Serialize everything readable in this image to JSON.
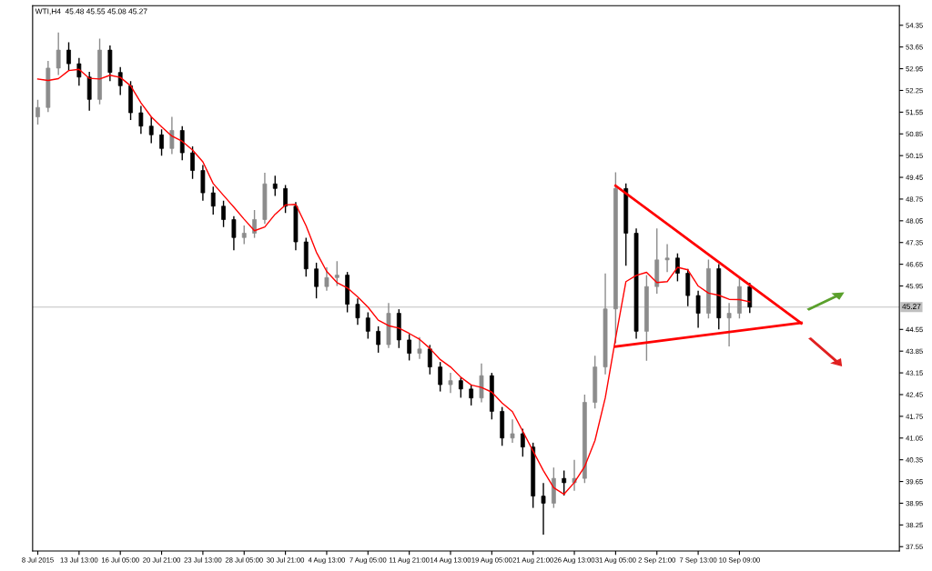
{
  "chart_data": {
    "type": "candlestick",
    "title": "WTI,H4  45.48 45.55 45.08 45.27",
    "categories": [
      "8 Jul 2015",
      null,
      null,
      null,
      "13 Jul 13:00",
      null,
      null,
      null,
      "16 Jul 05:00",
      null,
      null,
      null,
      "20 Jul 21:00",
      null,
      null,
      null,
      "23 Jul 13:00",
      null,
      null,
      null,
      "28 Jul 05:00",
      null,
      null,
      null,
      "30 Jul 21:00",
      null,
      null,
      null,
      "4 Aug 13:00",
      null,
      null,
      null,
      "7 Aug 05:00",
      null,
      null,
      null,
      "11 Aug 21:00",
      null,
      null,
      null,
      "14 Aug 13:00",
      null,
      null,
      null,
      "19 Aug 05:00",
      null,
      null,
      null,
      "21 Aug 21:00",
      null,
      null,
      null,
      "26 Aug 13:00",
      null,
      null,
      null,
      "31 Aug 05:00",
      null,
      null,
      null,
      "2 Sep 21:00",
      null,
      null,
      null,
      "7 Sep 13:00",
      null,
      null,
      null,
      "10 Sep 09:00",
      null,
      null,
      null,
      null,
      null,
      null,
      null,
      null,
      null,
      null,
      null,
      null,
      null,
      null,
      null
    ],
    "ohlc": [
      [
        51.4,
        51.95,
        51.15,
        51.7
      ],
      [
        51.7,
        53.2,
        51.55,
        52.97
      ],
      [
        52.97,
        54.12,
        52.75,
        53.55
      ],
      [
        53.55,
        53.8,
        52.9,
        53.11
      ],
      [
        53.11,
        53.3,
        52.4,
        52.68
      ],
      [
        52.68,
        52.85,
        51.6,
        51.96
      ],
      [
        51.96,
        53.92,
        51.8,
        53.55
      ],
      [
        53.55,
        53.7,
        52.55,
        52.83
      ],
      [
        52.83,
        53.0,
        52.1,
        52.4
      ],
      [
        52.4,
        52.55,
        51.3,
        51.53
      ],
      [
        51.53,
        51.75,
        50.85,
        51.1
      ],
      [
        51.1,
        51.4,
        50.55,
        50.82
      ],
      [
        50.82,
        51.0,
        50.15,
        50.38
      ],
      [
        50.38,
        51.4,
        50.2,
        50.96
      ],
      [
        50.96,
        51.1,
        50.0,
        50.24
      ],
      [
        50.24,
        50.45,
        49.4,
        49.67
      ],
      [
        49.67,
        49.85,
        48.7,
        48.95
      ],
      [
        48.95,
        49.15,
        48.25,
        48.52
      ],
      [
        48.52,
        48.7,
        47.85,
        48.09
      ],
      [
        48.09,
        48.2,
        47.1,
        47.51
      ],
      [
        47.51,
        47.9,
        47.3,
        47.65
      ],
      [
        47.65,
        48.4,
        47.5,
        48.09
      ],
      [
        48.09,
        49.6,
        47.95,
        49.24
      ],
      [
        49.24,
        49.5,
        48.85,
        49.09
      ],
      [
        49.09,
        49.2,
        48.3,
        48.52
      ],
      [
        48.52,
        48.65,
        47.1,
        47.37
      ],
      [
        47.37,
        47.5,
        46.25,
        46.5
      ],
      [
        46.5,
        46.7,
        45.55,
        45.93
      ],
      [
        45.93,
        46.55,
        45.8,
        46.22
      ],
      [
        46.22,
        46.75,
        45.95,
        46.3
      ],
      [
        46.3,
        46.4,
        45.1,
        45.36
      ],
      [
        45.36,
        45.55,
        44.7,
        44.92
      ],
      [
        44.92,
        45.1,
        44.25,
        44.49
      ],
      [
        44.49,
        44.65,
        43.8,
        44.06
      ],
      [
        44.06,
        45.4,
        43.95,
        45.07
      ],
      [
        45.07,
        45.2,
        43.95,
        44.21
      ],
      [
        44.21,
        44.4,
        43.55,
        43.78
      ],
      [
        43.78,
        44.3,
        43.6,
        43.92
      ],
      [
        43.92,
        44.05,
        43.1,
        43.34
      ],
      [
        43.34,
        43.5,
        42.55,
        42.77
      ],
      [
        42.77,
        43.15,
        42.5,
        42.9
      ],
      [
        42.9,
        43.0,
        42.35,
        42.63
      ],
      [
        42.63,
        42.75,
        42.1,
        42.34
      ],
      [
        42.34,
        43.45,
        42.2,
        43.06
      ],
      [
        43.06,
        43.15,
        41.65,
        41.91
      ],
      [
        41.91,
        42.05,
        40.8,
        41.05
      ],
      [
        41.05,
        41.65,
        40.9,
        41.19
      ],
      [
        41.19,
        41.35,
        40.45,
        40.76
      ],
      [
        40.76,
        40.9,
        38.8,
        39.18
      ],
      [
        39.18,
        39.6,
        37.94,
        38.95
      ],
      [
        38.95,
        40.1,
        38.8,
        39.75
      ],
      [
        39.75,
        40.0,
        39.2,
        39.61
      ],
      [
        39.61,
        40.35,
        39.35,
        39.75
      ],
      [
        39.75,
        42.45,
        39.6,
        42.2
      ],
      [
        42.2,
        43.7,
        42.0,
        43.34
      ],
      [
        43.34,
        46.35,
        43.1,
        45.21
      ],
      [
        45.21,
        49.61,
        44.1,
        49.09
      ],
      [
        49.09,
        49.25,
        46.6,
        47.65
      ],
      [
        47.65,
        47.8,
        44.25,
        44.49
      ],
      [
        44.49,
        46.3,
        43.54,
        45.93
      ],
      [
        45.93,
        47.8,
        45.7,
        46.79
      ],
      [
        46.79,
        47.3,
        46.4,
        46.85
      ],
      [
        46.85,
        47.0,
        46.1,
        46.36
      ],
      [
        46.36,
        46.5,
        45.3,
        45.64
      ],
      [
        45.64,
        45.8,
        44.6,
        45.07
      ],
      [
        45.07,
        46.8,
        44.9,
        46.51
      ],
      [
        46.51,
        46.65,
        44.55,
        44.92
      ],
      [
        44.92,
        45.4,
        44.0,
        45.07
      ],
      [
        45.07,
        46.25,
        44.9,
        45.93
      ],
      [
        45.93,
        46.05,
        45.08,
        45.27
      ],
      null,
      null,
      null,
      null,
      null,
      null,
      null,
      null,
      null,
      null,
      null,
      null,
      null,
      null
    ],
    "colors": [
      "#8c8c8c",
      "#8c8c8c",
      "#8c8c8c",
      "#000000",
      "#000000",
      "#000000",
      "#8c8c8c",
      "#000000",
      "#000000",
      "#000000",
      "#000000",
      "#000000",
      "#000000",
      "#8c8c8c",
      "#000000",
      "#000000",
      "#000000",
      "#000000",
      "#000000",
      "#000000",
      "#8c8c8c",
      "#8c8c8c",
      "#8c8c8c",
      "#000000",
      "#000000",
      "#000000",
      "#000000",
      "#000000",
      "#8c8c8c",
      "#8c8c8c",
      "#000000",
      "#000000",
      "#000000",
      "#000000",
      "#8c8c8c",
      "#000000",
      "#000000",
      "#8c8c8c",
      "#000000",
      "#000000",
      "#8c8c8c",
      "#000000",
      "#000000",
      "#8c8c8c",
      "#000000",
      "#000000",
      "#8c8c8c",
      "#000000",
      "#000000",
      "#000000",
      "#8c8c8c",
      "#000000",
      "#8c8c8c",
      "#8c8c8c",
      "#8c8c8c",
      "#8c8c8c",
      "#8c8c8c",
      "#000000",
      "#000000",
      "#8c8c8c",
      "#8c8c8c",
      "#8c8c8c",
      "#000000",
      "#000000",
      "#000000",
      "#8c8c8c",
      "#000000",
      "#8c8c8c",
      "#8c8c8c",
      "#000000",
      null,
      null,
      null,
      null,
      null,
      null,
      null,
      null,
      null,
      null,
      null,
      null,
      null,
      null
    ],
    "series": [
      {
        "type": "line",
        "color": "#ff0000",
        "values": [
          52.62,
          52.57,
          52.63,
          52.89,
          52.93,
          52.64,
          52.62,
          52.74,
          52.67,
          52.4,
          51.85,
          51.4,
          51.08,
          50.78,
          50.61,
          50.33,
          49.95,
          49.25,
          48.87,
          48.49,
          48.1,
          47.73,
          47.85,
          48.26,
          48.56,
          48.58,
          47.89,
          47.04,
          46.42,
          46.06,
          45.89,
          45.6,
          45.27,
          44.85,
          44.67,
          44.59,
          44.42,
          44.23,
          43.94,
          43.58,
          43.34,
          43.01,
          42.76,
          42.68,
          42.53,
          42.18,
          41.9,
          41.27,
          40.63,
          40.0,
          39.45,
          39.24,
          39.62,
          40.13,
          40.97,
          42.35,
          44.27,
          46.09,
          46.29,
          46.39,
          46.06,
          46.09,
          46.55,
          46.47,
          45.95,
          45.72,
          45.65,
          45.52,
          45.51,
          45.44,
          null,
          null,
          null,
          null,
          null,
          null,
          null,
          null,
          null,
          null,
          null,
          null,
          null,
          null
        ]
      },
      {
        "type": "line",
        "color": "#ff0000",
        "values": [
          null,
          null,
          null,
          null,
          null,
          null,
          null,
          null,
          null,
          null,
          null,
          null,
          null,
          null,
          null,
          null,
          null,
          null,
          null,
          null,
          null,
          null,
          null,
          null,
          null,
          null,
          null,
          null,
          null,
          null,
          null,
          null,
          null,
          null,
          null,
          null,
          null,
          null,
          null,
          null,
          null,
          null,
          null,
          null,
          null,
          null,
          null,
          null,
          null,
          null,
          null,
          null,
          null,
          null,
          null,
          null,
          49.18,
          null,
          null,
          null,
          null,
          null,
          null,
          null,
          null,
          null,
          null,
          null,
          null,
          null,
          null,
          null,
          null,
          null,
          44.75,
          null,
          null,
          null,
          null,
          null,
          null,
          null,
          null,
          null
        ]
      },
      {
        "type": "line",
        "color": "#ff0000",
        "values": [
          null,
          null,
          null,
          null,
          null,
          null,
          null,
          null,
          null,
          null,
          null,
          null,
          null,
          null,
          null,
          null,
          null,
          null,
          null,
          null,
          null,
          null,
          null,
          null,
          null,
          null,
          null,
          null,
          null,
          null,
          null,
          null,
          null,
          null,
          null,
          null,
          null,
          null,
          null,
          null,
          null,
          null,
          null,
          null,
          null,
          null,
          null,
          null,
          null,
          null,
          null,
          null,
          null,
          null,
          null,
          null,
          44.0,
          null,
          null,
          null,
          null,
          null,
          null,
          null,
          null,
          null,
          null,
          null,
          null,
          null,
          null,
          null,
          null,
          null,
          44.76,
          null,
          null,
          null,
          null,
          null,
          null,
          null,
          null,
          null
        ]
      }
    ],
    "ylim": [
      37.41,
      54.98
    ],
    "yticks": [
      54.35,
      53.65,
      52.95,
      52.25,
      51.55,
      50.85,
      50.15,
      49.45,
      48.75,
      48.05,
      47.35,
      46.65,
      45.95,
      44.55,
      43.85,
      43.15,
      42.45,
      41.75,
      41.05,
      40.35,
      39.65,
      38.95,
      38.25,
      37.55
    ],
    "ref_lines": [
      {
        "axis": "y",
        "value": 45.27,
        "label": "45.27",
        "color": "#c0c0c0"
      }
    ],
    "grid": false,
    "legend": false
  }
}
